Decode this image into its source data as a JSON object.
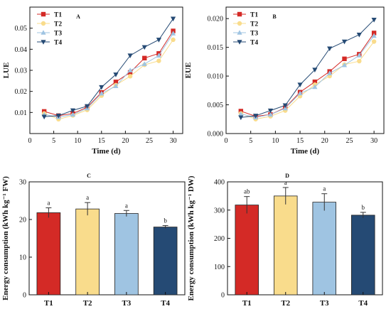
{
  "colors": {
    "T1": "#d42a26",
    "T2": "#f9dc8c",
    "T3": "#9fc4e2",
    "T4": "#254a74",
    "axis": "#111111",
    "errorbar": "#333333"
  },
  "chart_data": [
    {
      "type": "line",
      "panel_label": "A",
      "ylabel": "LUE",
      "xlabel": "Time (d)",
      "xlim": [
        0,
        32
      ],
      "xticks": [
        0,
        5,
        10,
        15,
        20,
        25,
        30
      ],
      "ylim": [
        0,
        0.06
      ],
      "yticks": [
        0.01,
        0.02,
        0.03,
        0.04,
        0.05
      ],
      "ytick_labels": [
        "0.01",
        "0.02",
        "0.03",
        "0.04",
        "0.05"
      ],
      "legend_position": "upper-left",
      "x": [
        3,
        6,
        9,
        12,
        15,
        18,
        21,
        24,
        27,
        30
      ],
      "series": [
        {
          "name": "T1",
          "marker": "square",
          "values": [
            0.0105,
            0.0085,
            0.0095,
            0.0125,
            0.0195,
            0.0245,
            0.029,
            0.0358,
            0.038,
            0.0487
          ]
        },
        {
          "name": "T2",
          "marker": "circle",
          "values": [
            0.0095,
            0.0068,
            0.0086,
            0.0112,
            0.018,
            0.023,
            0.0272,
            0.0326,
            0.0345,
            0.0445
          ]
        },
        {
          "name": "T3",
          "marker": "triangle-up",
          "values": [
            0.009,
            0.0078,
            0.009,
            0.012,
            0.019,
            0.0225,
            0.03,
            0.033,
            0.037,
            0.0475
          ]
        },
        {
          "name": "T4",
          "marker": "triangle-down",
          "values": [
            0.008,
            0.0085,
            0.011,
            0.013,
            0.022,
            0.028,
            0.037,
            0.041,
            0.0445,
            0.0545
          ]
        }
      ]
    },
    {
      "type": "line",
      "panel_label": "B",
      "ylabel": "EUE",
      "xlabel": "Time (d)",
      "xlim": [
        0,
        32
      ],
      "xticks": [
        0,
        5,
        10,
        15,
        20,
        25,
        30
      ],
      "ylim": [
        0,
        0.022
      ],
      "yticks": [
        0.0,
        0.005,
        0.01,
        0.015,
        0.02
      ],
      "ytick_labels": [
        "0.000",
        "0.005",
        "0.010",
        "0.015",
        "0.020"
      ],
      "legend_position": "upper-left",
      "x": [
        3,
        6,
        9,
        12,
        15,
        18,
        21,
        24,
        27,
        30
      ],
      "series": [
        {
          "name": "T1",
          "marker": "square",
          "values": [
            0.0039,
            0.003,
            0.0033,
            0.0045,
            0.0072,
            0.009,
            0.0108,
            0.013,
            0.0138,
            0.0175
          ]
        },
        {
          "name": "T2",
          "marker": "circle",
          "values": [
            0.0035,
            0.0025,
            0.003,
            0.004,
            0.0065,
            0.0085,
            0.01,
            0.012,
            0.0126,
            0.016
          ]
        },
        {
          "name": "T3",
          "marker": "triangle-up",
          "values": [
            0.0034,
            0.0028,
            0.0033,
            0.0044,
            0.007,
            0.0081,
            0.0105,
            0.0119,
            0.0136,
            0.017
          ]
        },
        {
          "name": "T4",
          "marker": "triangle-down",
          "values": [
            0.0028,
            0.0031,
            0.004,
            0.0049,
            0.0085,
            0.0111,
            0.0148,
            0.016,
            0.0172,
            0.0198
          ]
        }
      ]
    },
    {
      "type": "bar",
      "panel_label": "C",
      "ylabel": "Energy consumption (kWh kg⁻¹ FW)",
      "xlabel": "",
      "categories": [
        "T1",
        "T2",
        "T3",
        "T4"
      ],
      "values": [
        21.8,
        22.8,
        21.6,
        18.0
      ],
      "errors": [
        1.3,
        1.7,
        0.8,
        0.4
      ],
      "significance": [
        "a",
        "a",
        "a",
        "b"
      ],
      "ylim": [
        0,
        30
      ],
      "yticks": [
        0,
        10,
        20,
        30
      ],
      "ytick_labels": [
        "0",
        "10",
        "20",
        "30"
      ]
    },
    {
      "type": "bar",
      "panel_label": "D",
      "ylabel": "Energy consumption (kWh kg⁻¹ DW)",
      "xlabel": "",
      "categories": [
        "T1",
        "T2",
        "T3",
        "T4"
      ],
      "values": [
        318,
        350,
        328,
        282
      ],
      "errors": [
        30,
        30,
        30,
        10
      ],
      "significance": [
        "ab",
        "a",
        "a",
        "b"
      ],
      "ylim": [
        0,
        400
      ],
      "yticks": [
        0,
        100,
        200,
        300,
        400
      ],
      "ytick_labels": [
        "0",
        "100",
        "200",
        "300",
        "400"
      ]
    }
  ]
}
